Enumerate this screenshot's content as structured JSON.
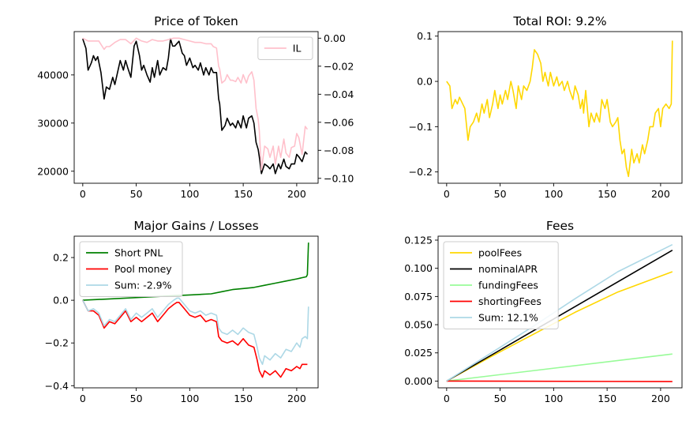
{
  "chart_data": [
    {
      "type": "line",
      "title": "Price of Token",
      "xlabel": "",
      "ylabel": "",
      "xlim": [
        -8,
        220
      ],
      "ylim": [
        17500,
        49000
      ],
      "y2lim": [
        -0.1035,
        0.0047
      ],
      "xticks": [
        0,
        50,
        100,
        150,
        200
      ],
      "yticks": [
        20000,
        30000,
        40000
      ],
      "y2ticks": [
        0.0,
        -0.02,
        -0.04,
        -0.06,
        -0.08,
        -0.1
      ],
      "legend_position": "top-right",
      "grid": false,
      "series": [
        {
          "name": "",
          "axis": "left",
          "color": "#000000",
          "x": [
            0,
            3,
            5,
            8,
            10,
            12,
            14,
            17,
            20,
            22,
            25,
            28,
            30,
            32,
            35,
            38,
            40,
            42,
            45,
            48,
            50,
            53,
            55,
            57,
            60,
            63,
            65,
            67,
            70,
            72,
            75,
            78,
            80,
            82,
            84,
            86,
            88,
            90,
            93,
            95,
            97,
            100,
            103,
            105,
            108,
            110,
            113,
            115,
            118,
            120,
            122,
            125,
            127,
            128,
            130,
            133,
            135,
            138,
            140,
            143,
            145,
            148,
            150,
            153,
            155,
            158,
            160,
            162,
            164,
            165,
            167,
            170,
            173,
            175,
            178,
            180,
            183,
            185,
            188,
            190,
            193,
            195,
            198,
            200,
            202,
            205,
            208,
            210
          ],
          "y": [
            47500,
            45500,
            41000,
            42500,
            44000,
            43000,
            43800,
            40500,
            35000,
            37500,
            37000,
            39500,
            38000,
            40000,
            43000,
            41000,
            43000,
            41500,
            39500,
            46000,
            47000,
            44000,
            41000,
            42000,
            40000,
            38500,
            41500,
            39500,
            43000,
            40000,
            41500,
            41000,
            43500,
            47500,
            46000,
            46000,
            46500,
            47000,
            44500,
            44000,
            42000,
            43500,
            41500,
            42000,
            41000,
            42500,
            40000,
            41500,
            40000,
            41500,
            40500,
            40500,
            35000,
            34000,
            28500,
            29500,
            31000,
            29500,
            30000,
            29000,
            30500,
            29000,
            31500,
            29000,
            31000,
            31500,
            30000,
            26000,
            24500,
            23000,
            19500,
            21500,
            21000,
            20500,
            21500,
            19500,
            21500,
            20500,
            22500,
            21000,
            20500,
            21500,
            21500,
            23500,
            23000,
            22000,
            24000,
            23500
          ]
        },
        {
          "name": "IL",
          "axis": "right",
          "color": "#ffc0cb",
          "x": [
            0,
            5,
            10,
            15,
            20,
            22,
            25,
            30,
            35,
            40,
            45,
            50,
            55,
            60,
            65,
            70,
            75,
            80,
            85,
            90,
            95,
            100,
            105,
            110,
            115,
            120,
            122,
            125,
            127,
            128,
            130,
            133,
            135,
            138,
            140,
            143,
            145,
            148,
            150,
            153,
            155,
            158,
            160,
            162,
            164,
            165,
            167,
            170,
            173,
            175,
            178,
            180,
            183,
            185,
            188,
            190,
            193,
            195,
            198,
            200,
            202,
            205,
            208,
            210
          ],
          "y": [
            0.0,
            -0.002,
            -0.002,
            -0.002,
            -0.008,
            -0.006,
            -0.006,
            -0.003,
            -0.001,
            -0.001,
            -0.004,
            0.0,
            -0.002,
            -0.003,
            -0.001,
            -0.002,
            -0.002,
            -0.001,
            0.0,
            0.0,
            -0.001,
            -0.002,
            -0.003,
            -0.003,
            -0.004,
            -0.004,
            -0.006,
            -0.007,
            -0.02,
            -0.022,
            -0.032,
            -0.03,
            -0.026,
            -0.03,
            -0.03,
            -0.031,
            -0.028,
            -0.032,
            -0.026,
            -0.032,
            -0.027,
            -0.024,
            -0.03,
            -0.05,
            -0.058,
            -0.066,
            -0.094,
            -0.077,
            -0.079,
            -0.085,
            -0.077,
            -0.09,
            -0.077,
            -0.085,
            -0.072,
            -0.082,
            -0.085,
            -0.078,
            -0.077,
            -0.068,
            -0.071,
            -0.083,
            -0.063,
            -0.065
          ]
        }
      ]
    },
    {
      "type": "line",
      "title": "Total ROI: 9.2%",
      "xlabel": "",
      "ylabel": "",
      "xlim": [
        -8,
        220
      ],
      "ylim": [
        -0.225,
        0.11
      ],
      "xticks": [
        0,
        50,
        100,
        150,
        200
      ],
      "yticks": [
        0.1,
        0.0,
        -0.1,
        -0.2
      ],
      "grid": false,
      "series": [
        {
          "name": "",
          "color": "#ffd700",
          "x": [
            0,
            3,
            5,
            8,
            10,
            12,
            15,
            17,
            20,
            22,
            25,
            28,
            30,
            33,
            35,
            38,
            40,
            43,
            45,
            48,
            50,
            52,
            55,
            57,
            60,
            62,
            65,
            67,
            70,
            72,
            75,
            78,
            80,
            82,
            85,
            88,
            90,
            92,
            95,
            97,
            100,
            103,
            105,
            108,
            110,
            113,
            115,
            118,
            120,
            123,
            125,
            127,
            128,
            130,
            133,
            135,
            138,
            140,
            143,
            145,
            148,
            150,
            153,
            155,
            158,
            160,
            162,
            164,
            166,
            168,
            170,
            173,
            175,
            178,
            180,
            183,
            185,
            188,
            190,
            193,
            195,
            198,
            200,
            202,
            205,
            208,
            210,
            211
          ],
          "y": [
            0.0,
            -0.01,
            -0.06,
            -0.04,
            -0.05,
            -0.035,
            -0.05,
            -0.06,
            -0.13,
            -0.1,
            -0.09,
            -0.07,
            -0.09,
            -0.05,
            -0.07,
            -0.04,
            -0.08,
            -0.05,
            -0.02,
            -0.06,
            -0.03,
            -0.05,
            -0.02,
            -0.04,
            0.0,
            -0.02,
            -0.06,
            -0.01,
            -0.04,
            -0.01,
            -0.02,
            0.0,
            0.03,
            0.07,
            0.06,
            0.04,
            0.0,
            0.02,
            -0.01,
            0.02,
            -0.01,
            0.01,
            -0.01,
            0.0,
            -0.02,
            0.0,
            -0.02,
            -0.04,
            -0.01,
            -0.03,
            -0.06,
            -0.04,
            -0.07,
            -0.02,
            -0.1,
            -0.07,
            -0.09,
            -0.07,
            -0.09,
            -0.04,
            -0.06,
            -0.04,
            -0.09,
            -0.1,
            -0.09,
            -0.08,
            -0.13,
            -0.16,
            -0.15,
            -0.19,
            -0.21,
            -0.15,
            -0.18,
            -0.16,
            -0.18,
            -0.14,
            -0.16,
            -0.13,
            -0.1,
            -0.1,
            -0.07,
            -0.06,
            -0.1,
            -0.06,
            -0.05,
            -0.06,
            -0.05,
            0.09
          ]
        }
      ]
    },
    {
      "type": "line",
      "title": "Major Gains / Losses",
      "xlabel": "",
      "ylabel": "",
      "xlim": [
        -8,
        220
      ],
      "ylim": [
        -0.41,
        0.3
      ],
      "xticks": [
        0,
        50,
        100,
        150,
        200
      ],
      "yticks": [
        0.2,
        0.0,
        -0.2,
        -0.4
      ],
      "legend_position": "top-left",
      "grid": false,
      "series": [
        {
          "name": "Short PNL",
          "color": "#008000",
          "x": [
            0,
            20,
            40,
            60,
            80,
            100,
            120,
            130,
            140,
            150,
            160,
            170,
            180,
            190,
            200,
            209,
            210,
            211
          ],
          "y": [
            0.0,
            0.005,
            0.01,
            0.015,
            0.02,
            0.025,
            0.03,
            0.04,
            0.05,
            0.055,
            0.06,
            0.07,
            0.08,
            0.09,
            0.1,
            0.11,
            0.12,
            0.27
          ]
        },
        {
          "name": "Pool money",
          "color": "#ff0000",
          "x": [
            0,
            5,
            10,
            15,
            20,
            25,
            30,
            35,
            40,
            45,
            50,
            55,
            60,
            65,
            70,
            75,
            80,
            85,
            88,
            90,
            95,
            100,
            105,
            110,
            115,
            120,
            125,
            127,
            130,
            135,
            140,
            145,
            150,
            155,
            160,
            163,
            165,
            168,
            170,
            175,
            180,
            185,
            190,
            195,
            200,
            203,
            205,
            208,
            210
          ],
          "y": [
            0.0,
            -0.05,
            -0.05,
            -0.07,
            -0.13,
            -0.1,
            -0.11,
            -0.08,
            -0.05,
            -0.1,
            -0.08,
            -0.1,
            -0.08,
            -0.06,
            -0.1,
            -0.07,
            -0.04,
            -0.02,
            -0.01,
            -0.01,
            -0.04,
            -0.07,
            -0.08,
            -0.07,
            -0.1,
            -0.09,
            -0.1,
            -0.17,
            -0.19,
            -0.2,
            -0.19,
            -0.21,
            -0.18,
            -0.21,
            -0.22,
            -0.28,
            -0.33,
            -0.36,
            -0.33,
            -0.35,
            -0.33,
            -0.36,
            -0.32,
            -0.33,
            -0.31,
            -0.32,
            -0.3,
            -0.3,
            -0.3
          ]
        },
        {
          "name": "Sum: -2.9%",
          "color": "#add8e6",
          "x": [
            0,
            5,
            10,
            15,
            20,
            25,
            30,
            35,
            40,
            45,
            50,
            55,
            60,
            65,
            70,
            75,
            80,
            85,
            88,
            90,
            95,
            100,
            105,
            110,
            115,
            120,
            125,
            127,
            130,
            135,
            140,
            145,
            150,
            155,
            160,
            163,
            165,
            168,
            170,
            175,
            180,
            185,
            190,
            195,
            200,
            203,
            205,
            208,
            210,
            211
          ],
          "y": [
            0.0,
            -0.05,
            -0.04,
            -0.06,
            -0.12,
            -0.09,
            -0.1,
            -0.07,
            -0.04,
            -0.09,
            -0.06,
            -0.08,
            -0.06,
            -0.04,
            -0.08,
            -0.05,
            -0.02,
            0.0,
            0.01,
            0.01,
            -0.02,
            -0.05,
            -0.06,
            -0.05,
            -0.07,
            -0.06,
            -0.07,
            -0.13,
            -0.15,
            -0.16,
            -0.14,
            -0.16,
            -0.13,
            -0.15,
            -0.16,
            -0.22,
            -0.27,
            -0.3,
            -0.26,
            -0.28,
            -0.25,
            -0.27,
            -0.23,
            -0.24,
            -0.2,
            -0.22,
            -0.18,
            -0.17,
            -0.18,
            -0.03
          ]
        }
      ]
    },
    {
      "type": "line",
      "title": "Fees",
      "xlabel": "",
      "ylabel": "",
      "xlim": [
        -8,
        220
      ],
      "ylim": [
        -0.006,
        0.1285
      ],
      "xticks": [
        0,
        50,
        100,
        150,
        200
      ],
      "yticks": [
        0.0,
        0.025,
        0.05,
        0.075,
        0.1,
        0.125
      ],
      "legend_position": "top-left",
      "grid": false,
      "series": [
        {
          "name": "poolFees",
          "color": "#ffd700",
          "x": [
            0,
            40,
            80,
            120,
            160,
            211
          ],
          "y": [
            0.0,
            0.021,
            0.041,
            0.061,
            0.079,
            0.097
          ]
        },
        {
          "name": "nominalAPR",
          "color": "#000000",
          "x": [
            0,
            211
          ],
          "y": [
            0.0,
            0.116
          ]
        },
        {
          "name": "fundingFees",
          "color": "#98fb98",
          "x": [
            0,
            211
          ],
          "y": [
            0.0,
            0.024
          ]
        },
        {
          "name": "shortingFees",
          "color": "#ff0000",
          "x": [
            0,
            211
          ],
          "y": [
            0.0,
            -0.0005
          ]
        },
        {
          "name": "Sum: 12.1%",
          "color": "#add8e6",
          "x": [
            0,
            40,
            80,
            120,
            160,
            211
          ],
          "y": [
            0.0,
            0.024,
            0.048,
            0.073,
            0.097,
            0.121
          ]
        }
      ]
    }
  ]
}
